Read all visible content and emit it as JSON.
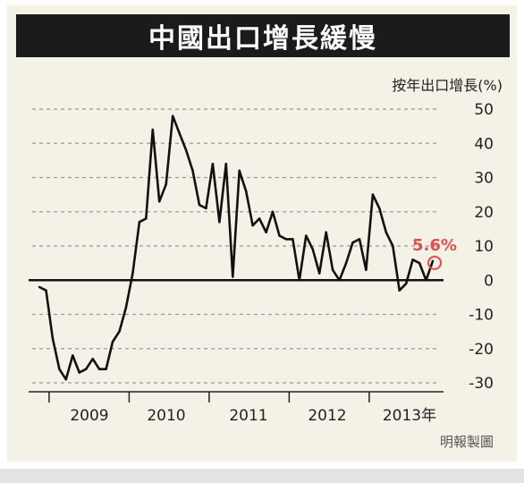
{
  "chart_data": {
    "type": "line",
    "title": "中國出口增長緩慢",
    "ylabel": "按年出口增長(%)",
    "ylim": [
      -30,
      50
    ],
    "yticks": [
      50,
      40,
      30,
      20,
      10,
      0,
      -10,
      -20,
      -30
    ],
    "year_labels": [
      "2009",
      "2010",
      "2011",
      "2012",
      "2013年"
    ],
    "x_start": "2008-11",
    "series": [
      {
        "values": [
          -2,
          -3,
          -17,
          -26,
          -29,
          -22,
          -27,
          -26,
          -23,
          -26,
          -26,
          -18,
          -15,
          -8,
          2,
          17,
          18,
          44,
          23,
          28,
          48,
          43,
          38,
          32,
          22,
          21,
          34,
          17,
          34,
          1,
          32,
          26,
          16,
          18,
          14,
          20,
          13,
          12,
          12,
          0,
          13,
          9,
          2,
          14,
          3,
          0,
          5,
          11,
          12,
          3,
          25,
          21,
          14,
          10,
          -3,
          -1,
          6,
          5,
          0,
          5.6
        ]
      }
    ],
    "annotation": {
      "label": "5.6%",
      "value": 5.6,
      "color": "#e0504b"
    },
    "line_color": "#111111",
    "grid": "dashed-horizontal"
  },
  "credit": "明報製圖"
}
